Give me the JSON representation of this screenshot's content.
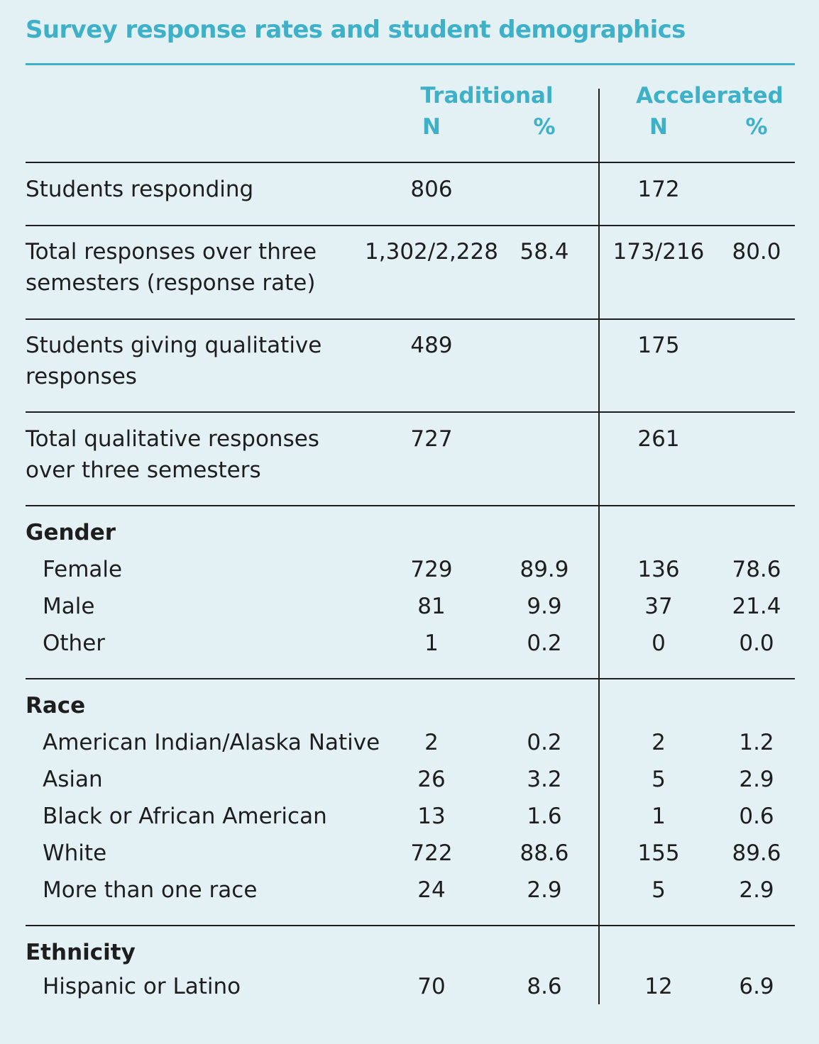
{
  "title": "Survey response rates and student demographics",
  "columns": {
    "traditional": "Traditional",
    "accelerated": "Accelerated",
    "n": "N",
    "pct": "%"
  },
  "rows": [
    {
      "label_line1": "Students responding",
      "label_line2": "",
      "trad_n": "806",
      "trad_pct": "",
      "acc_n": "172",
      "acc_pct": ""
    },
    {
      "label_line1": "Total responses over three",
      "label_line2": "semesters (response rate)",
      "trad_n": "1,302/2,228",
      "trad_pct": "58.4",
      "acc_n": "173/216",
      "acc_pct": "80.0"
    },
    {
      "label_line1": "Students giving qualitative",
      "label_line2": "responses",
      "trad_n": "489",
      "trad_pct": "",
      "acc_n": "175",
      "acc_pct": ""
    },
    {
      "label_line1": "Total qualitative responses",
      "label_line2": "over three semesters",
      "trad_n": "727",
      "trad_pct": "",
      "acc_n": "261",
      "acc_pct": ""
    }
  ],
  "sections": [
    {
      "heading": "Gender",
      "items": [
        {
          "label": "Female",
          "trad_n": "729",
          "trad_pct": "89.9",
          "acc_n": "136",
          "acc_pct": "78.6"
        },
        {
          "label": "Male",
          "trad_n": "81",
          "trad_pct": "9.9",
          "acc_n": "37",
          "acc_pct": "21.4"
        },
        {
          "label": "Other",
          "trad_n": "1",
          "trad_pct": "0.2",
          "acc_n": "0",
          "acc_pct": "0.0"
        }
      ]
    },
    {
      "heading": "Race",
      "items": [
        {
          "label": "American Indian/Alaska Native",
          "trad_n": "2",
          "trad_pct": "0.2",
          "acc_n": "2",
          "acc_pct": "1.2"
        },
        {
          "label": "Asian",
          "trad_n": "26",
          "trad_pct": "3.2",
          "acc_n": "5",
          "acc_pct": "2.9"
        },
        {
          "label": "Black or African American",
          "trad_n": "13",
          "trad_pct": "1.6",
          "acc_n": "1",
          "acc_pct": "0.6"
        },
        {
          "label": "White",
          "trad_n": "722",
          "trad_pct": "88.6",
          "acc_n": "155",
          "acc_pct": "89.6"
        },
        {
          "label": "More than one race",
          "trad_n": "24",
          "trad_pct": "2.9",
          "acc_n": "5",
          "acc_pct": "2.9"
        }
      ]
    },
    {
      "heading": "Ethnicity",
      "items": [
        {
          "label": "Hispanic or Latino",
          "trad_n": "70",
          "trad_pct": "8.6",
          "acc_n": "12",
          "acc_pct": "6.9"
        }
      ]
    }
  ]
}
